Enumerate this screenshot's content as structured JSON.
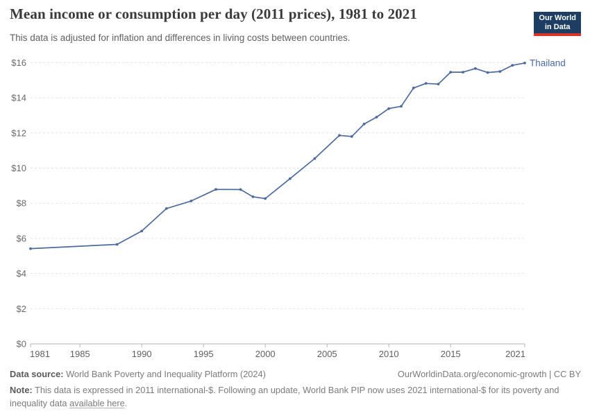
{
  "header": {
    "title": "Mean income or consumption per day (2011 prices), 1981 to 2021",
    "subtitle": "This data is adjusted for inflation and differences in living costs between countries.",
    "logo": {
      "line1": "Our World",
      "line2": "in Data",
      "bg_color": "#1d3d63",
      "accent_color": "#d7342b"
    }
  },
  "chart_data": {
    "type": "line",
    "title": "Mean income or consumption per day (2011 prices), 1981 to 2021",
    "xlabel": "",
    "ylabel": "",
    "x": [
      1981,
      1988,
      1990,
      1992,
      1994,
      1996,
      1998,
      1999,
      2000,
      2002,
      2004,
      2006,
      2007,
      2008,
      2009,
      2010,
      2011,
      2012,
      2013,
      2014,
      2015,
      2016,
      2017,
      2018,
      2019,
      2020,
      2021
    ],
    "series": [
      {
        "name": "Thailand",
        "color": "#4c6a9c",
        "values": [
          5.42,
          5.66,
          6.42,
          7.7,
          8.13,
          8.79,
          8.78,
          8.37,
          8.27,
          9.4,
          10.55,
          11.86,
          11.8,
          12.51,
          12.9,
          13.39,
          13.52,
          14.56,
          14.82,
          14.78,
          15.46,
          15.46,
          15.67,
          15.44,
          15.5,
          15.85,
          15.98
        ]
      }
    ],
    "xlim": [
      1981,
      2021
    ],
    "ylim": [
      0,
      16
    ],
    "x_ticks": [
      1981,
      1985,
      1990,
      1995,
      2000,
      2005,
      2010,
      2015,
      2021
    ],
    "y_ticks": [
      0,
      2,
      4,
      6,
      8,
      10,
      12,
      14,
      16
    ],
    "y_tick_prefix": "$",
    "grid": true,
    "grid_color": "#e2e2e2",
    "axis_color": "#b5b5b5",
    "tick_label_color": "#6a6a6a",
    "legend_position": "end-of-line"
  },
  "footer": {
    "datasource_label": "Data source:",
    "datasource_text": " World Bank Poverty and Inequality Platform (2024)",
    "attribution": "OurWorldinData.org/economic-growth | CC BY",
    "note_label": "Note:",
    "note_text": " This data is expressed in 2011 international-$. Following an update, World Bank PIP now uses 2021 international-$ for its poverty and inequality data ",
    "note_link": "available here",
    "note_suffix": "."
  }
}
